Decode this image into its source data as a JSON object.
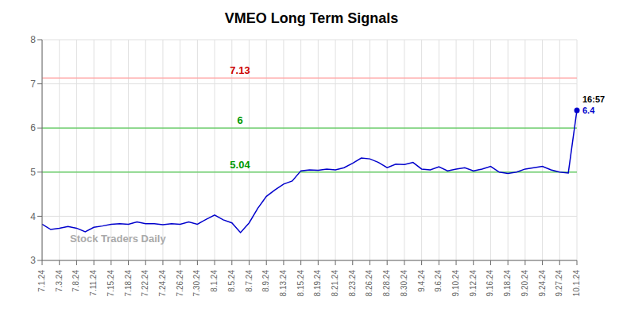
{
  "chart_data": {
    "type": "line",
    "title": "VMEO Long Term Signals",
    "categories": [
      "7.1.24",
      null,
      "7.3.24",
      null,
      "7.8.24",
      null,
      "7.11.24",
      null,
      "7.15.24",
      null,
      "7.18.24",
      null,
      "7.22.24",
      null,
      "7.24.24",
      null,
      "7.26.24",
      null,
      "7.30.24",
      null,
      "8.1.24",
      null,
      "8.5.24",
      null,
      "8.7.24",
      null,
      "8.9.24",
      null,
      "8.13.24",
      null,
      "8.15.24",
      null,
      "8.19.24",
      null,
      "8.21.24",
      null,
      "8.23.24",
      null,
      "8.26.24",
      null,
      "8.28.24",
      null,
      "8.30.24",
      null,
      "9.4.24",
      null,
      "9.6.24",
      null,
      "9.10.24",
      null,
      "9.12.24",
      null,
      "9.16.24",
      null,
      "9.18.24",
      null,
      "9.20.24",
      null,
      "9.24.24",
      null,
      "9.27.24",
      null,
      "10.1.24"
    ],
    "series": [
      {
        "color": "#0000cc",
        "values": [
          3.82,
          3.7,
          3.73,
          3.77,
          3.73,
          3.65,
          3.75,
          3.78,
          3.82,
          3.83,
          3.82,
          3.87,
          3.83,
          3.83,
          3.81,
          3.83,
          3.82,
          3.87,
          3.82,
          3.93,
          4.03,
          3.92,
          3.85,
          3.63,
          3.85,
          4.18,
          4.45,
          4.6,
          4.73,
          4.8,
          5.03,
          5.05,
          5.04,
          5.07,
          5.05,
          5.1,
          5.2,
          5.32,
          5.3,
          5.22,
          5.1,
          5.18,
          5.17,
          5.22,
          5.07,
          5.05,
          5.12,
          5.03,
          5.07,
          5.1,
          5.03,
          5.07,
          5.13,
          5.0,
          4.97,
          5.0,
          5.07,
          5.1,
          5.13,
          5.05,
          5.0,
          4.98,
          6.4
        ]
      }
    ],
    "ylim": [
      3,
      8
    ],
    "yticks": [
      3,
      4,
      5,
      6,
      7,
      8
    ],
    "grid": true,
    "hlines": [
      {
        "value": 7.13,
        "color": "#ffaaaa",
        "label": "7.13",
        "label_color": "#cc0000"
      },
      {
        "value": 6.0,
        "color": "#66cc66",
        "label": "6",
        "label_color": "#009900"
      },
      {
        "value": 5.0,
        "color": "#66cc66",
        "label": "5.04",
        "label_color": "#009900"
      }
    ],
    "annotations": [
      {
        "text": "16:57",
        "color": "#000000"
      },
      {
        "text": "6.4",
        "color": "#0000cc"
      }
    ],
    "watermark": "Stock Traders Daily"
  }
}
